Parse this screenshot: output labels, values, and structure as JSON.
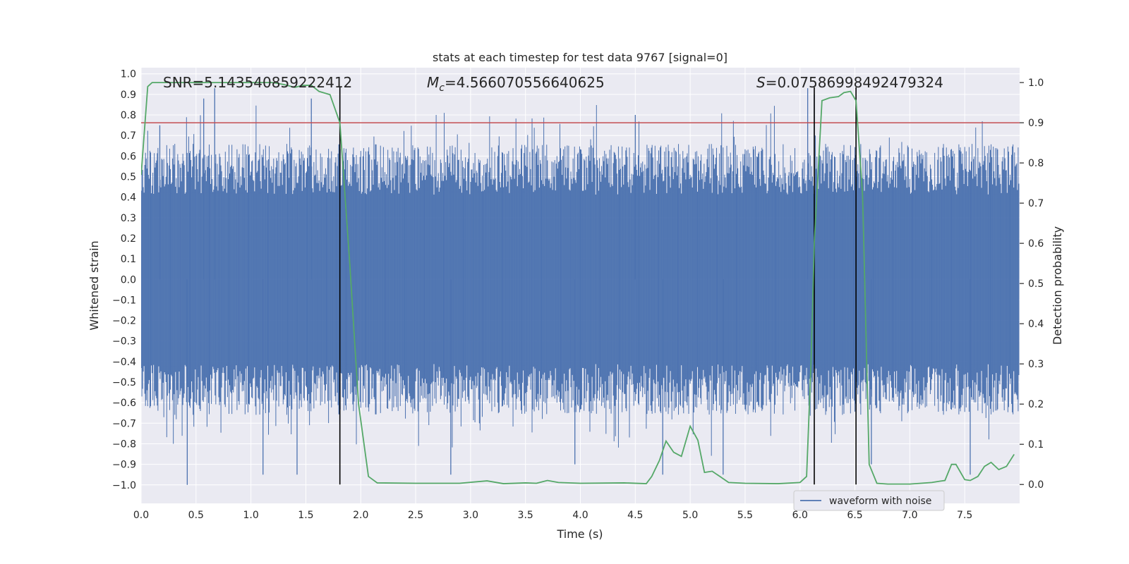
{
  "chart_data": {
    "type": "line",
    "title": "stats at each timestep for test data 9767 [signal=0]",
    "xlabel": "Time (s)",
    "ylabel_left": "Whitened strain",
    "ylabel_right": "Detection probability",
    "xlim": [
      0.0,
      8.0
    ],
    "ylim_left": [
      -1.09,
      1.03
    ],
    "ylim_right": [
      -0.047,
      1.037
    ],
    "x_ticks": [
      "0.0",
      "0.5",
      "1.0",
      "1.5",
      "2.0",
      "2.5",
      "3.0",
      "3.5",
      "4.0",
      "4.5",
      "5.0",
      "5.5",
      "6.0",
      "6.5",
      "7.0",
      "7.5"
    ],
    "x_tick_values": [
      0.0,
      0.5,
      1.0,
      1.5,
      2.0,
      2.5,
      3.0,
      3.5,
      4.0,
      4.5,
      5.0,
      5.5,
      6.0,
      6.5,
      7.0,
      7.5
    ],
    "y_left_ticks": [
      "1.0",
      "0.9",
      "0.8",
      "0.7",
      "0.6",
      "0.5",
      "0.4",
      "0.3",
      "0.2",
      "0.1",
      "0.0",
      "−0.1",
      "−0.2",
      "−0.3",
      "−0.4",
      "−0.5",
      "−0.6",
      "−0.7",
      "−0.8",
      "−0.9",
      "−1.0"
    ],
    "y_left_tick_values": [
      1.0,
      0.9,
      0.8,
      0.7,
      0.6,
      0.5,
      0.4,
      0.3,
      0.2,
      0.1,
      0.0,
      -0.1,
      -0.2,
      -0.3,
      -0.4,
      -0.5,
      -0.6,
      -0.7,
      -0.8,
      -0.9,
      -1.0
    ],
    "y_right_ticks": [
      "1.0",
      "0.9",
      "0.8",
      "0.7",
      "0.6",
      "0.5",
      "0.4",
      "0.3",
      "0.2",
      "0.1",
      "0.0"
    ],
    "y_right_tick_values": [
      1.0,
      0.9,
      0.8,
      0.7,
      0.6,
      0.5,
      0.4,
      0.3,
      0.2,
      0.1,
      0.0
    ],
    "grid": true,
    "legend": {
      "position": "bottom-right",
      "entries": [
        "waveform with noise"
      ]
    },
    "annotations": {
      "snr": "SNR=5.143540859222412",
      "mc_symbol": "M",
      "mc_subscript": "c",
      "mc_value": "=4.566070556640625",
      "s_symbol": "S",
      "s_value": "=0.07586998492479324"
    },
    "threshold": 0.9,
    "vertical_lines_x": [
      1.81,
      6.13,
      6.51
    ],
    "waveform": {
      "name": "waveform with noise",
      "duration_s": 8.0,
      "samples": 1200,
      "envelope_mean": 0.55,
      "burst_peaks": [
        {
          "x": 0.17,
          "y": 0.75
        },
        {
          "x": 0.42,
          "y": -1.0
        },
        {
          "x": 0.57,
          "y": 0.88
        },
        {
          "x": 0.67,
          "y": 0.93
        },
        {
          "x": 1.11,
          "y": -0.95
        },
        {
          "x": 1.42,
          "y": -0.95
        },
        {
          "x": 1.55,
          "y": 0.88
        },
        {
          "x": 2.82,
          "y": -0.95
        },
        {
          "x": 3.95,
          "y": -0.9
        },
        {
          "x": 4.5,
          "y": 0.8
        },
        {
          "x": 4.75,
          "y": -0.95
        },
        {
          "x": 5.3,
          "y": -0.95
        },
        {
          "x": 6.07,
          "y": 0.93
        },
        {
          "x": 6.13,
          "y": 0.9
        },
        {
          "x": 6.65,
          "y": -0.9
        },
        {
          "x": 7.55,
          "y": -0.95
        }
      ]
    },
    "detection_probability": {
      "x": [
        0.0,
        0.06,
        0.1,
        0.2,
        0.4,
        0.6,
        0.8,
        1.0,
        1.2,
        1.3,
        1.4,
        1.47,
        1.55,
        1.62,
        1.72,
        1.81,
        1.9,
        1.98,
        2.07,
        2.15,
        2.5,
        2.9,
        3.15,
        3.3,
        3.5,
        3.6,
        3.7,
        3.8,
        4.0,
        4.4,
        4.6,
        4.65,
        4.72,
        4.78,
        4.85,
        4.92,
        5.0,
        5.07,
        5.13,
        5.2,
        5.27,
        5.35,
        5.5,
        5.8,
        6.0,
        6.06,
        6.1,
        6.13,
        6.2,
        6.27,
        6.35,
        6.4,
        6.46,
        6.51,
        6.57,
        6.63,
        6.7,
        6.8,
        7.0,
        7.2,
        7.27,
        7.32,
        7.38,
        7.42,
        7.5,
        7.55,
        7.62,
        7.68,
        7.74,
        7.81,
        7.88,
        7.95
      ],
      "y": [
        0.77,
        0.99,
        1.0,
        1.0,
        1.0,
        1.0,
        1.0,
        1.0,
        1.0,
        0.995,
        0.988,
        0.993,
        0.993,
        0.978,
        0.97,
        0.9,
        0.55,
        0.2,
        0.02,
        0.004,
        0.003,
        0.003,
        0.009,
        0.002,
        0.004,
        0.003,
        0.01,
        0.005,
        0.003,
        0.004,
        0.002,
        0.02,
        0.06,
        0.108,
        0.08,
        0.07,
        0.145,
        0.11,
        0.03,
        0.033,
        0.02,
        0.005,
        0.003,
        0.002,
        0.005,
        0.02,
        0.3,
        0.6,
        0.955,
        0.962,
        0.965,
        0.975,
        0.978,
        0.955,
        0.72,
        0.05,
        0.003,
        0.001,
        0.001,
        0.005,
        0.008,
        0.01,
        0.05,
        0.05,
        0.012,
        0.01,
        0.02,
        0.045,
        0.055,
        0.037,
        0.045,
        0.075
      ]
    },
    "colors": {
      "plot_background": "#eaeaf2",
      "grid": "#ffffff",
      "waveform": "#4c72b0",
      "probability": "#55a868",
      "threshold": "#c44e52",
      "vlines": "#000000",
      "legend_background": "#eaeaf2",
      "legend_border": "#cccccc"
    }
  }
}
